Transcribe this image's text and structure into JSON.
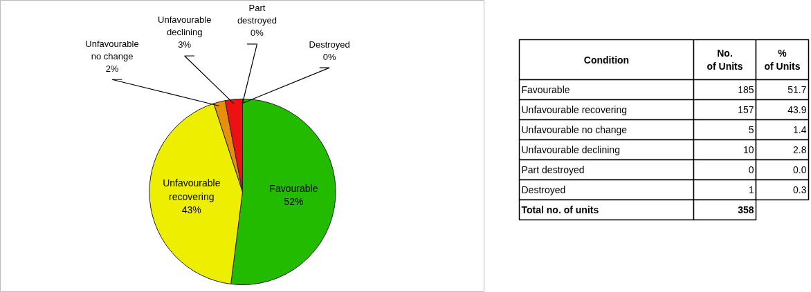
{
  "chart_data": [
    {
      "type": "pie",
      "categories": [
        "Favourable",
        "Unfavourable recovering",
        "Unfavourable no change",
        "Unfavourable declining",
        "Part destroyed",
        "Destroyed"
      ],
      "values": [
        52,
        43,
        2,
        3,
        0,
        0
      ],
      "colors": [
        "#22bb00",
        "#eeee00",
        "#e8900c",
        "#ee1111",
        "#7030a0",
        "#4472c4"
      ],
      "value_labels": [
        "52%",
        "43%",
        "2%",
        "3%",
        "0%",
        "0%"
      ]
    },
    {
      "type": "other",
      "categories": [
        "Favourable",
        "Unfavourable recovering",
        "Unfavourable no change",
        "Unfavourable declining",
        "Part destroyed",
        "Destroyed"
      ],
      "series": [
        {
          "name": "No. of Units",
          "values": [
            185,
            157,
            5,
            10,
            0,
            1
          ]
        },
        {
          "name": "% of Units",
          "values": [
            51.7,
            43.9,
            1.4,
            2.8,
            0.0,
            0.3
          ],
          "value_labels": [
            "51.7",
            "43.9",
            "1.4",
            "2.8",
            "0.0",
            "0.3"
          ]
        }
      ],
      "annotations": [
        "Condition",
        "Total no. of units"
      ],
      "totals": [
        "358"
      ],
      "data_labels": true
    }
  ]
}
